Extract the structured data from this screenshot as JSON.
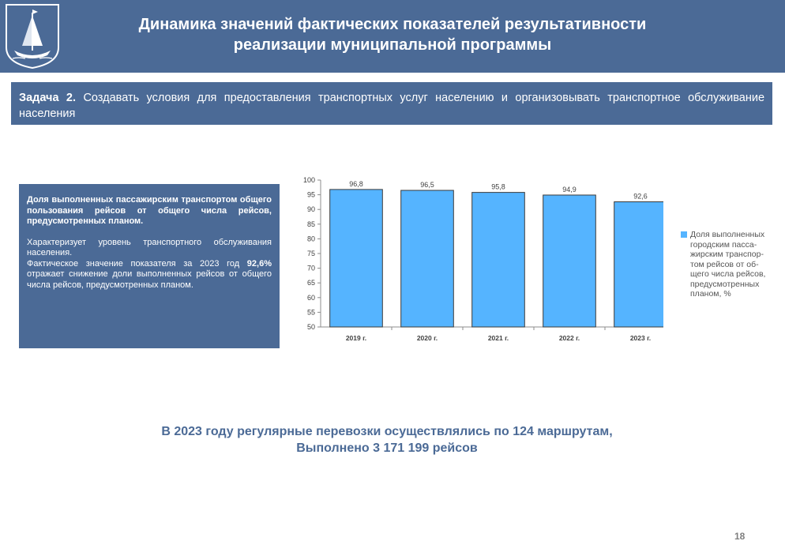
{
  "header": {
    "title_line1": "Динамика значений фактических показателей результативности",
    "title_line2": "реализации муниципальной программы",
    "logo_icon": "coat-of-arms-ship-icon"
  },
  "task": {
    "label": "Задача 2.",
    "text": "Создавать условия для предоставления транспортных услуг населению и организовывать транспортное обслуживание населения"
  },
  "infobox": {
    "lead": "Доля выполненных пассажирским транспортом общего пользования рейсов от общего числа рейсов, предусмотренных планом.",
    "desc1": "Характеризует уровень транспортного обслуживания населения.",
    "desc2_before": "Фактическое значение показателя за 2023 год",
    "desc2_value": "92,6%",
    "desc2_after": "отражает снижение доли выполненных рейсов от общего числа рейсов, предусмотренных планом."
  },
  "chart_data": {
    "type": "bar",
    "categories": [
      "2019 г.",
      "2020 г.",
      "2021 г.",
      "2022 г.",
      "2023 г."
    ],
    "values": [
      96.8,
      96.5,
      95.8,
      94.9,
      92.6
    ],
    "value_labels": [
      "96,8",
      "96,5",
      "95,8",
      "94,9",
      "92,6"
    ],
    "ylim": [
      50,
      100
    ],
    "yticks": [
      50,
      55,
      60,
      65,
      70,
      75,
      80,
      85,
      90,
      95,
      100
    ],
    "series": [
      {
        "name": "Доля выполненных городским пасса-жирским транспор-том рейсов от об-щего числа рейсов, предусмотренных планом, %",
        "values": [
          96.8,
          96.5,
          95.8,
          94.9,
          92.6
        ]
      }
    ],
    "legend_lines": [
      "Доля выполненных",
      "городским пасса-",
      "жирским транспор-",
      "том рейсов от об-",
      "щего числа рейсов,",
      "предусмотренных",
      "планом, %"
    ],
    "legend_position": "right",
    "bar_color": "#55b4ff",
    "grid": false
  },
  "summary": {
    "line1": "В 2023 году регулярные перевозки осуществлялись по 124 маршрутам,",
    "line2": "Выполнено 3 171 199 рейсов"
  },
  "page_number": "18",
  "colors": {
    "header_bg": "#4b6a96",
    "accent": "#4b6a96",
    "bar": "#55b4ff"
  }
}
